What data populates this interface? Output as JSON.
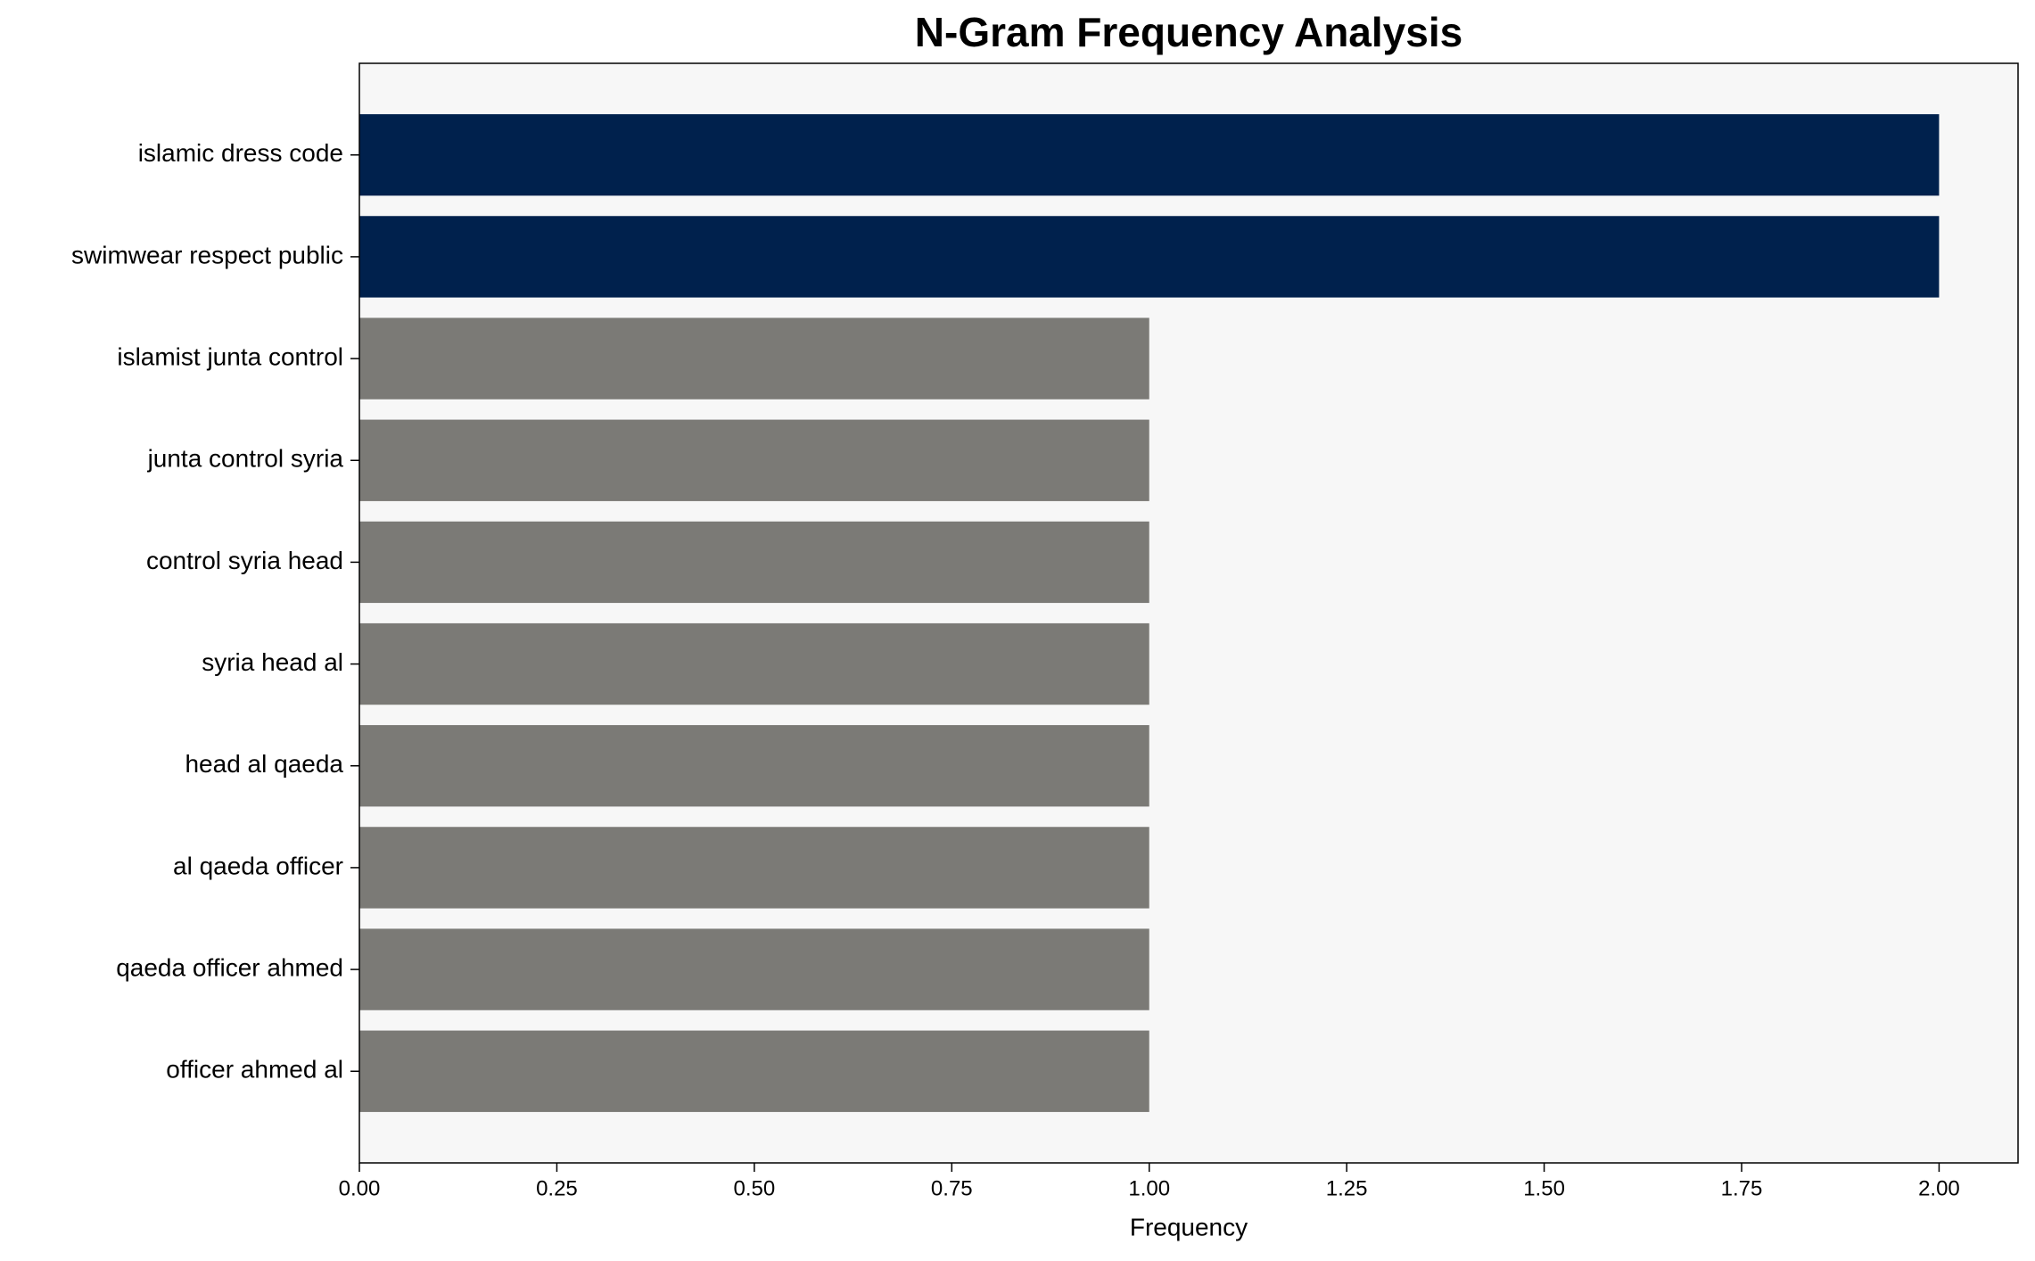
{
  "chart_data": {
    "type": "hbar",
    "title": "N-Gram Frequency Analysis",
    "x_label": "Frequency",
    "categories": [
      "islamic dress code",
      "swimwear respect public",
      "islamist junta control",
      "junta control syria",
      "control syria head",
      "syria head al",
      "head al qaeda",
      "al qaeda officer",
      "qaeda officer ahmed",
      "officer ahmed al"
    ],
    "values": [
      2,
      2,
      1,
      1,
      1,
      1,
      1,
      1,
      1,
      1
    ],
    "colors": [
      "#00214d",
      "#00214d",
      "#7b7a76",
      "#7b7a76",
      "#7b7a76",
      "#7b7a76",
      "#7b7a76",
      "#7b7a76",
      "#7b7a76",
      "#7b7a76"
    ],
    "xlim": [
      0,
      2.1
    ],
    "xticks": [
      {
        "value": 0,
        "label": "0.00"
      },
      {
        "value": 0.25,
        "label": "0.25"
      },
      {
        "value": 0.5,
        "label": "0.50"
      },
      {
        "value": 0.75,
        "label": "0.75"
      },
      {
        "value": 1,
        "label": "1.00"
      },
      {
        "value": 1.25,
        "label": "1.25"
      },
      {
        "value": 1.5,
        "label": "1.50"
      },
      {
        "value": 1.75,
        "label": "1.75"
      },
      {
        "value": 2,
        "label": "2.00"
      }
    ],
    "grid": false
  }
}
